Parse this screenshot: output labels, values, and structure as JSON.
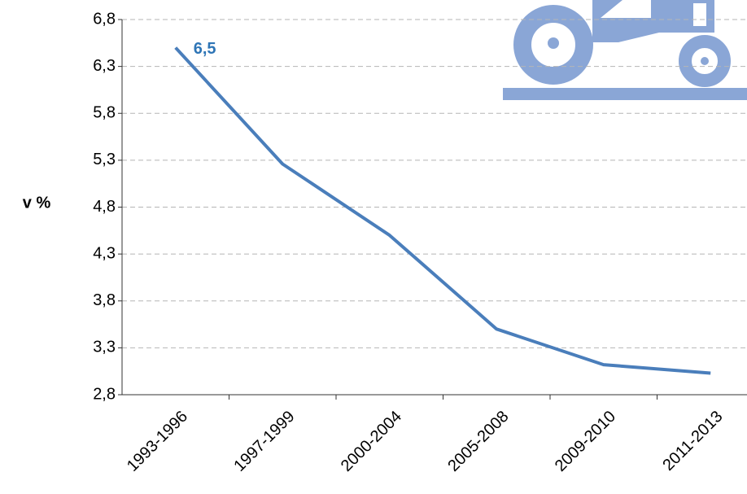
{
  "chart_data": {
    "type": "line",
    "y_label": "v %",
    "categories": [
      "1993-1996",
      "1997-1999",
      "2000-2004",
      "2005-2008",
      "2009-2010",
      "2011-2013"
    ],
    "series": [
      {
        "name": "v %",
        "color": "#4a7ebb",
        "values": [
          6.5,
          5.26,
          4.5,
          3.5,
          3.12,
          3.03
        ],
        "value_labels": [
          "6,5",
          null,
          null,
          null,
          null,
          null
        ]
      }
    ],
    "ylim": [
      2.8,
      6.8
    ],
    "yticks": [
      {
        "value": 2.8,
        "label": "2,8"
      },
      {
        "value": 3.3,
        "label": "3,3"
      },
      {
        "value": 3.8,
        "label": "3,8"
      },
      {
        "value": 4.3,
        "label": "4,3"
      },
      {
        "value": 4.8,
        "label": "4,8"
      },
      {
        "value": 5.3,
        "label": "5,3"
      },
      {
        "value": 5.8,
        "label": "5,8"
      },
      {
        "value": 6.3,
        "label": "6,3"
      },
      {
        "value": 6.8,
        "label": "6,8"
      }
    ],
    "grid": true
  }
}
